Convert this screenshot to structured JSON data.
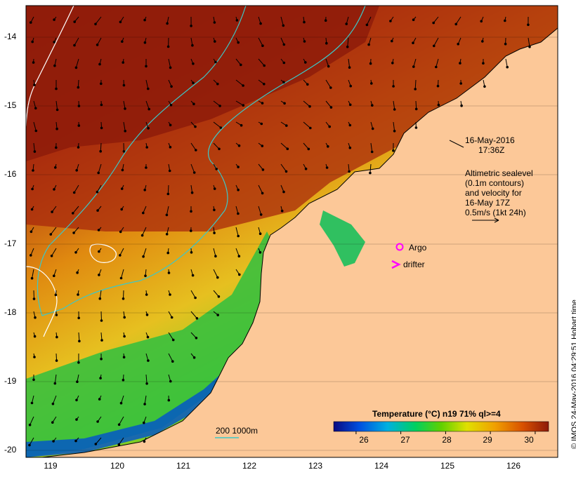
{
  "lat_ticks": [
    {
      "label": "-14",
      "value": -14
    },
    {
      "label": "-15",
      "value": -15
    },
    {
      "label": "-16",
      "value": -16
    },
    {
      "label": "-17",
      "value": -17
    },
    {
      "label": "-18",
      "value": -18
    },
    {
      "label": "-19",
      "value": -19
    },
    {
      "label": "-20",
      "value": -20
    }
  ],
  "lon_ticks": [
    {
      "label": "119",
      "value": 119
    },
    {
      "label": "120",
      "value": 120
    },
    {
      "label": "121",
      "value": 121
    },
    {
      "label": "122",
      "value": 122
    },
    {
      "label": "123",
      "value": 123
    },
    {
      "label": "124",
      "value": 124
    },
    {
      "label": "125",
      "value": 125
    },
    {
      "label": "126",
      "value": 126
    }
  ],
  "annotation": {
    "date": "16-May-2016",
    "time": "17:36Z",
    "altimetry_lines": [
      "Altimetric sealevel",
      "(0.1m contours)",
      "and velocity for",
      "16-May 17Z",
      "0.5m/s (1kt 24h)"
    ]
  },
  "legend": {
    "argo_label": "Argo",
    "drifter_label": "drifter",
    "contour_label": "200  1000m"
  },
  "colorbar": {
    "title": "Temperature (°C) n19 71% ql>=4",
    "ticks": [
      {
        "label": "26",
        "value": 26
      },
      {
        "label": "27",
        "value": 27
      },
      {
        "label": "28",
        "value": 28
      },
      {
        "label": "29",
        "value": 29
      },
      {
        "label": "30",
        "value": 30
      }
    ],
    "min": 25.5,
    "max": 30.3
  },
  "credit": "© IMOS 24-May-2016 04:29:51 Hobart time",
  "colors": {
    "land": "#fcc898",
    "warm": "#8c1a0a",
    "bathy_200": "#3cc8c8",
    "bathy_1000": "#ffffff",
    "argo": "#ff00ff"
  }
}
